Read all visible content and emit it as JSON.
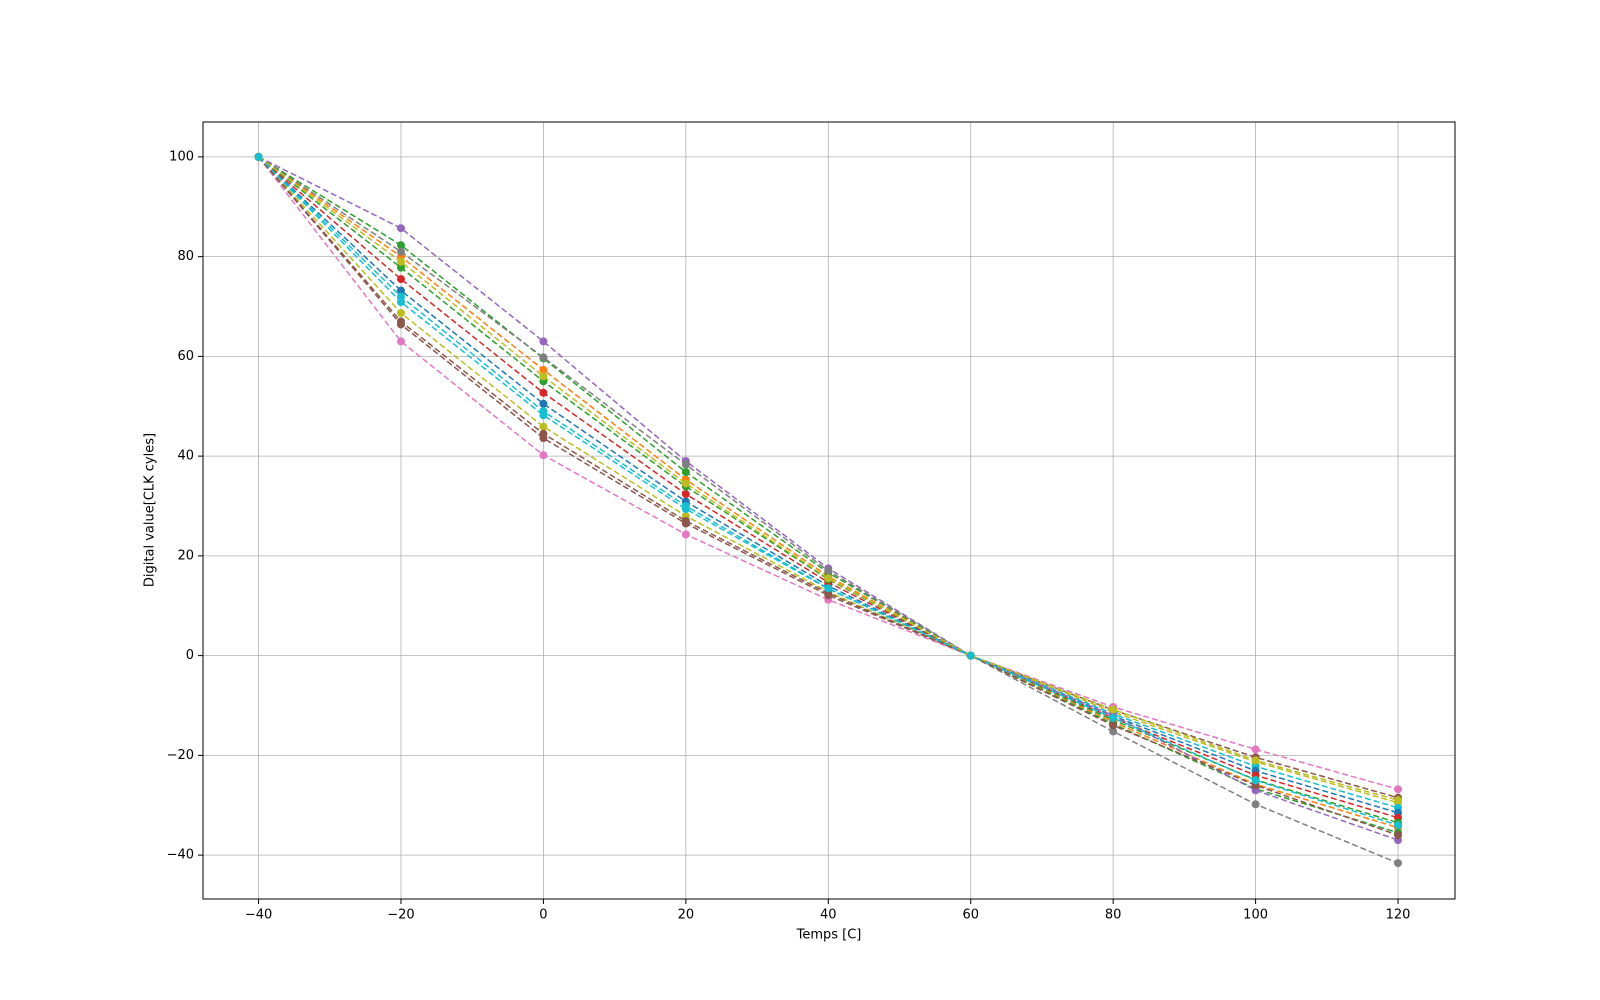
{
  "chart_data": {
    "type": "line",
    "xlabel": "Temps [C]",
    "ylabel": "Digital value[CLK cyles]",
    "x": [
      -40,
      -20,
      0,
      20,
      40,
      60,
      80,
      100,
      120
    ],
    "xlim": [
      -47.8,
      128
    ],
    "ylim": [
      -48.8,
      107
    ],
    "xticks": [
      {
        "value": -40,
        "label": "−40"
      },
      {
        "value": -20,
        "label": "−20"
      },
      0,
      20,
      40,
      60,
      80,
      100,
      120
    ],
    "yticks": [
      {
        "value": -40,
        "label": "−40"
      },
      {
        "value": -20,
        "label": "−20"
      },
      0,
      20,
      40,
      60,
      80,
      100
    ],
    "grid": true,
    "line_style": "dashed",
    "series": [
      {
        "color": "#e377c2",
        "values": [
          100,
          63,
          40.2,
          24.3,
          11.2,
          0,
          -10.3,
          -18.8,
          -26.8
        ]
      },
      {
        "color": "#8c564b",
        "values": [
          100,
          66.4,
          43.6,
          26.5,
          12.1,
          0,
          -10.9,
          -20.4,
          -28.5
        ]
      },
      {
        "color": "#bcbd22",
        "values": [
          100,
          68.7,
          45.9,
          28,
          12.8,
          0,
          -11.3,
          -21.3,
          -29.5
        ]
      },
      {
        "color": "#17becf",
        "values": [
          100,
          70.9,
          48.2,
          29.4,
          13.4,
          0,
          -11.7,
          -22.2,
          -30.5
        ]
      },
      {
        "color": "#1f77b4",
        "values": [
          100,
          73.2,
          50.5,
          30.9,
          14,
          0,
          -12.1,
          -23.1,
          -31.5
        ]
      },
      {
        "color": "#d62728",
        "values": [
          100,
          75.5,
          52.7,
          32.4,
          14.7,
          0,
          -12.5,
          -24,
          -32.5
        ]
      },
      {
        "color": "#2ca02c",
        "values": [
          100,
          77.8,
          55,
          33.9,
          15.3,
          0,
          -12.9,
          -24.9,
          -33.5
        ]
      },
      {
        "color": "#ff7f0e",
        "values": [
          100,
          80,
          57.3,
          35.3,
          15.9,
          0,
          -13.3,
          -25.8,
          -34.5
        ]
      },
      {
        "color": "#2ca02c",
        "values": [
          100,
          82.3,
          59.6,
          36.8,
          16.6,
          0,
          -13.7,
          -26.7,
          -35.5
        ]
      },
      {
        "color": "#9467bd",
        "values": [
          100,
          85.7,
          63,
          39,
          17.5,
          0,
          -12,
          -27,
          -37
        ]
      },
      {
        "color": "#7f7f7f",
        "values": [
          100,
          81,
          59.8,
          38.3,
          17,
          0,
          -15.2,
          -29.8,
          -41.6
        ]
      },
      {
        "color": "#8c564b",
        "values": [
          100,
          67,
          44.5,
          27,
          12.5,
          0,
          -14,
          -26,
          -36
        ]
      },
      {
        "color": "#bcbd22",
        "values": [
          100,
          79,
          56,
          34.5,
          15.5,
          0,
          -10.8,
          -21,
          -29
        ]
      },
      {
        "color": "#17becf",
        "values": [
          100,
          72,
          49,
          30,
          13.5,
          0,
          -12.5,
          -25,
          -34
        ]
      }
    ]
  }
}
